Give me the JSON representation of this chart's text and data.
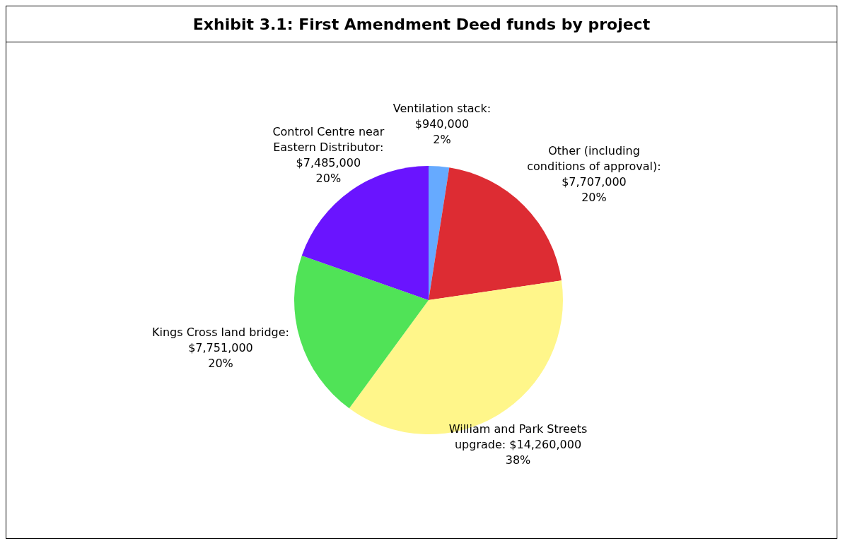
{
  "chart_data": {
    "type": "pie",
    "title": "Exhibit 3.1: First Amendment Deed funds by project",
    "categories": [
      "Ventilation stack",
      "Other (including conditions of approval)",
      "William and Park Streets upgrade",
      "Kings Cross land bridge",
      "Control Centre near Eastern Distributor"
    ],
    "values": [
      940000,
      7707000,
      14260000,
      7751000,
      7485000
    ],
    "colors": [
      "#66aaff",
      "#dd2c33",
      "#fff68a",
      "#50e357",
      "#6a14ff"
    ],
    "value_labels": [
      ": $940,000 2%",
      ": $7,707,000 20%",
      ": $14,260,000 38%",
      ": $7,751,000 20%",
      ": $7,485,000 20%"
    ],
    "legend": false
  }
}
